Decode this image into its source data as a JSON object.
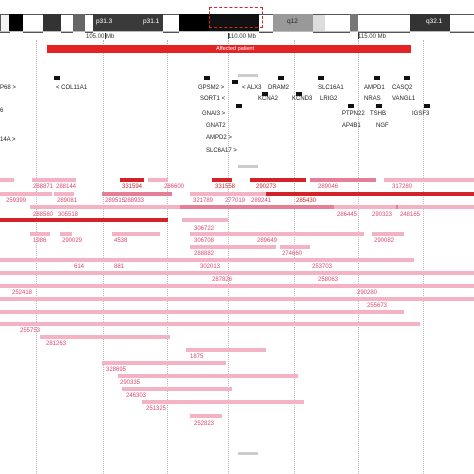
{
  "ideogram": {
    "bands": [
      "p31.3",
      "p31.1",
      "q12",
      "q32.1"
    ]
  },
  "ruler": {
    "ticks": [
      "105.00 Mb",
      "110.00 Mb",
      "115.00 Mb"
    ]
  },
  "patient_bar": {
    "label": "Affected patient"
  },
  "genes": [
    "P68 >",
    "6",
    "14A >",
    "< COL11A1",
    "GPSM2 >",
    "SORT1 <",
    "GNAI3 >",
    "GNAT2",
    "AMPD2 >",
    "SLC6A17 >",
    "< ALX3",
    "KCNA2",
    "DRAM2",
    "KCND3",
    "SLC16A1",
    "LRIG2",
    "PTPN22",
    "AP4B1",
    "AMPD1",
    "NRAS",
    "TSHB",
    "NGF",
    "CASQ2",
    "VANGL1",
    "IGSF3"
  ],
  "track_labels": [
    "288871",
    "288144",
    "331594",
    "286600",
    "331558",
    "290273",
    "289046",
    "317280",
    "259399",
    "289081",
    "289515",
    "288933",
    "321789",
    "277019",
    "289241",
    "285430",
    "288560",
    "305518",
    "286445",
    "290323",
    "248165",
    "306722",
    "1986",
    "290029",
    "4538",
    "306708",
    "289649",
    "290082",
    "288882",
    "274660",
    "614",
    "881",
    "302013",
    "253703",
    "287826",
    "258063",
    "252418",
    "290280",
    "255753",
    "255673",
    "281263",
    "1875",
    "328695",
    "290335",
    "246303",
    "251325",
    "252823"
  ],
  "colors": {
    "dark_red": "#d3232a",
    "mid_pink": "#e47f97",
    "light_pink": "#f4b3c4"
  }
}
